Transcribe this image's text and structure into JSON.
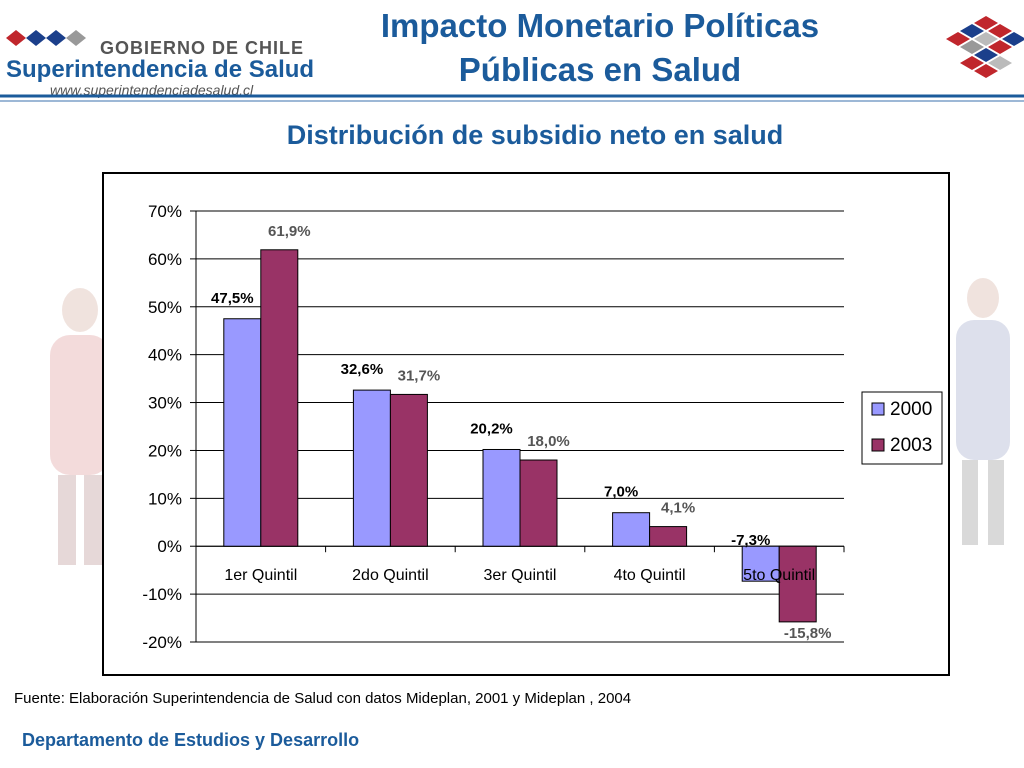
{
  "header": {
    "gobierno": "GOBIERNO DE CHILE",
    "institution": "Superintendencia de Salud",
    "website": "www.superintendenciadesalud.cl",
    "title_line1": "Impacto Monetario Políticas",
    "title_line2": "Públicas en Salud"
  },
  "subtitle": "Distribución de subsidio neto en salud",
  "chart_data": {
    "type": "bar",
    "categories": [
      "1er Quintil",
      "2do Quintil",
      "3er Quintil",
      "4to Quintil",
      "5to Quintil"
    ],
    "series": [
      {
        "name": "2000",
        "values": [
          47.5,
          32.6,
          20.2,
          7.0,
          -7.3
        ],
        "labels": [
          "47,5%",
          "32,6%",
          "20,2%",
          "7,0%",
          "-7,3%"
        ],
        "color": "#9999ff"
      },
      {
        "name": "2003",
        "values": [
          61.9,
          31.7,
          18.0,
          4.1,
          -15.8
        ],
        "labels": [
          "61,9%",
          "31,7%",
          "18,0%",
          "4,1%",
          "-15,8%"
        ],
        "color": "#993366"
      }
    ],
    "yticks": [
      70,
      60,
      50,
      40,
      30,
      20,
      10,
      0,
      -10,
      -20
    ],
    "ytick_labels": [
      "70%",
      "60%",
      "50%",
      "40%",
      "30%",
      "20%",
      "10%",
      "0%",
      "-10%",
      "-20%"
    ],
    "ylim": [
      -20,
      70
    ],
    "grid": true,
    "legend_position": "right"
  },
  "footer": {
    "source": "Fuente: Elaboración Superintendencia de Salud con datos Mideplan, 2001 y Mideplan , 2004",
    "department": "Departamento de Estudios y Desarrollo"
  },
  "colors": {
    "title": "#1b5b9b",
    "series_2000": "#9999ff",
    "series_2003": "#993366",
    "label_2003": "#555555"
  }
}
